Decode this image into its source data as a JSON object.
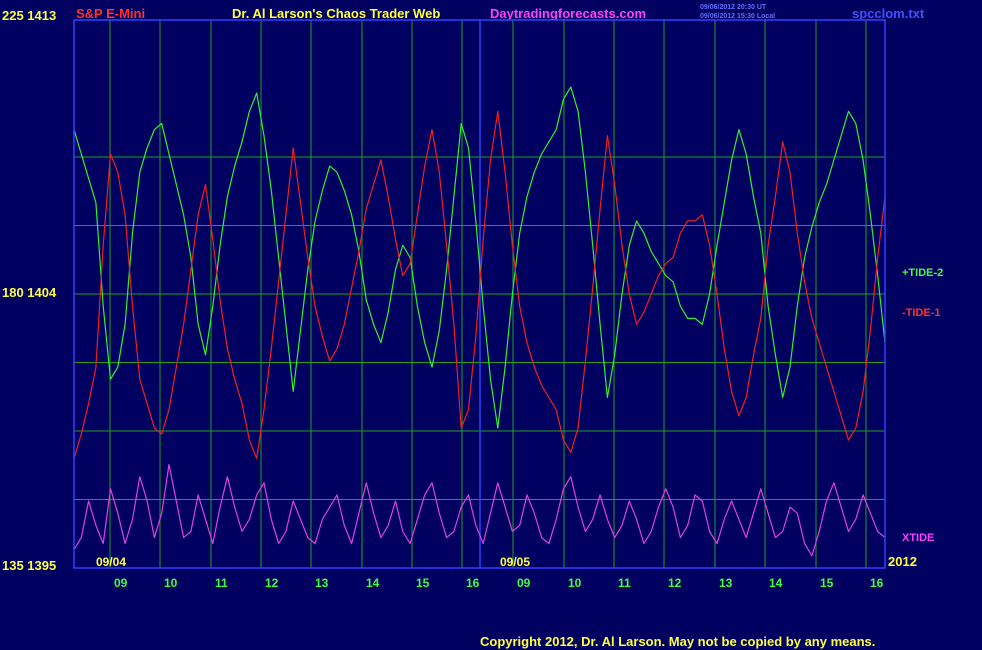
{
  "header": {
    "instrument": "S&P E-Mini",
    "title": "Dr. Al Larson's Chaos Trader Web",
    "website": "Daytradingforecasts.com",
    "timestamp_ut": "09/06/2012 20:30 UT",
    "timestamp_local": "09/06/2012 15:30 Local",
    "filename": "spcclom.txt"
  },
  "footer": {
    "copyright": "Copyright 2012, Dr. Al Larson. May not be copied by any means."
  },
  "colors": {
    "background": "#000060",
    "plot_border": "#3040FF",
    "grid": "#20A020",
    "tide_plus": "#30F030",
    "tide_minus": "#F02020",
    "xtide": "#E040E0",
    "label_yellow": "#FFFF40",
    "label_green": "#40FF40",
    "label_red": "#FF3030",
    "label_magenta": "#FF40FF"
  },
  "chart_data": {
    "type": "line",
    "y_axis_labels": [
      {
        "value": 225,
        "price": 1413,
        "text": "225  1413"
      },
      {
        "value": 180,
        "price": 1404,
        "text": "180  1404"
      },
      {
        "value": 135,
        "price": 1395,
        "text": "135  1395"
      }
    ],
    "ylim": [
      135,
      225
    ],
    "x_hour_labels": [
      "09",
      "10",
      "11",
      "12",
      "13",
      "14",
      "15",
      "16",
      "09",
      "10",
      "11",
      "12",
      "13",
      "14",
      "15",
      "16"
    ],
    "date_labels": [
      "09/04",
      "09/05"
    ],
    "year_label": "2012",
    "series": [
      {
        "name": "+TIDE-2",
        "values": [
          207,
          203,
          199,
          195,
          178,
          166,
          168,
          175,
          190,
          200,
          204,
          207,
          208,
          203,
          198,
          193,
          186,
          175,
          170,
          178,
          188,
          196,
          201,
          205,
          210,
          213,
          206,
          197,
          186,
          175,
          164,
          174,
          184,
          192,
          197,
          201,
          200,
          197,
          193,
          187,
          179,
          175,
          172,
          177,
          184,
          188,
          186,
          178,
          172,
          168,
          174,
          184,
          196,
          208,
          204,
          192,
          178,
          166,
          158,
          168,
          180,
          190,
          196,
          200,
          203,
          205,
          207,
          212,
          214,
          210,
          200,
          188,
          175,
          163,
          170,
          180,
          188,
          192,
          190,
          187,
          185,
          183,
          182,
          178,
          176,
          176,
          175,
          180,
          188,
          195,
          202,
          207,
          203,
          196,
          190,
          178,
          170,
          163,
          168,
          178,
          186,
          191,
          195,
          198,
          202,
          206,
          210,
          208,
          202,
          193,
          183,
          172
        ]
      },
      {
        "name": "-TIDE-1",
        "values": [
          153,
          157,
          162,
          168,
          188,
          203,
          200,
          193,
          178,
          166,
          162,
          158,
          157,
          161,
          168,
          175,
          184,
          193,
          198,
          189,
          179,
          171,
          166,
          162,
          156,
          153,
          161,
          171,
          182,
          193,
          204,
          195,
          186,
          178,
          173,
          169,
          171,
          175,
          181,
          187,
          194,
          198,
          202,
          196,
          189,
          183,
          185,
          193,
          201,
          207,
          200,
          188,
          175,
          158,
          161,
          173,
          189,
          202,
          210,
          200,
          188,
          178,
          172,
          168,
          165,
          163,
          161,
          156,
          154,
          158,
          169,
          181,
          194,
          206,
          198,
          188,
          180,
          175,
          177,
          180,
          183,
          185,
          186,
          190,
          192,
          192,
          193,
          188,
          180,
          171,
          164,
          160,
          163,
          170,
          176,
          188,
          196,
          205,
          200,
          190,
          182,
          176,
          172,
          168,
          164,
          160,
          156,
          158,
          164,
          174,
          186,
          196
        ]
      },
      {
        "name": "XTIDE",
        "values": [
          138,
          140,
          146,
          142,
          139,
          148,
          144,
          139,
          143,
          150,
          146,
          140,
          144,
          152,
          146,
          140,
          141,
          147,
          143,
          139,
          145,
          150,
          145,
          141,
          143,
          147,
          149,
          143,
          139,
          141,
          146,
          143,
          140,
          139,
          143,
          145,
          147,
          142,
          139,
          144,
          149,
          144,
          140,
          142,
          146,
          141,
          139,
          143,
          147,
          149,
          144,
          140,
          141,
          145,
          147,
          142,
          139,
          144,
          149,
          145,
          141,
          142,
          147,
          144,
          140,
          139,
          143,
          148,
          150,
          145,
          141,
          143,
          147,
          143,
          140,
          142,
          146,
          143,
          139,
          141,
          145,
          148,
          145,
          140,
          142,
          147,
          146,
          141,
          139,
          143,
          146,
          143,
          140,
          144,
          148,
          144,
          140,
          141,
          145,
          144,
          139,
          137,
          141,
          146,
          149,
          145,
          141,
          143,
          147,
          144,
          141,
          140
        ]
      }
    ],
    "grid": true,
    "legend_placement": "right"
  }
}
